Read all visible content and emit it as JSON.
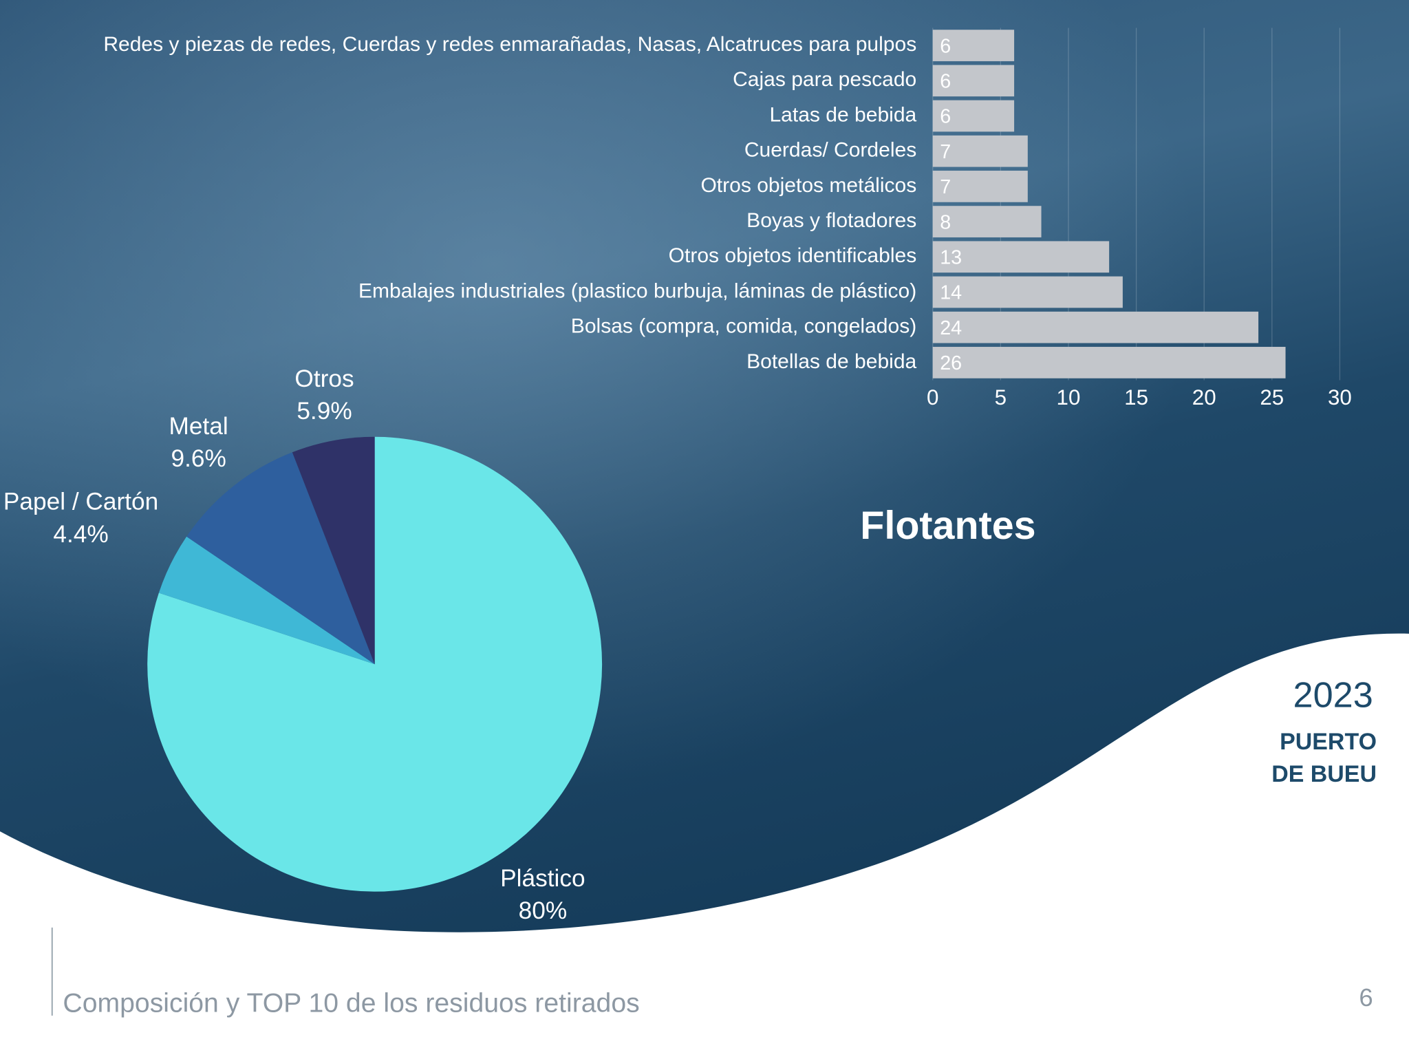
{
  "chart_data": [
    {
      "type": "barh",
      "categories": [
        "Redes y piezas de redes, Cuerdas y redes enmarañadas, Nasas, Alcatruces para pulpos",
        "Cajas para pescado",
        "Latas de bebida",
        "Cuerdas/ Cordeles",
        "Otros objetos metálicos",
        "Boyas y flotadores",
        "Otros objetos identificables",
        "Embalajes industriales (plastico burbuja, láminas de plástico)",
        "Bolsas (compra, comida, congelados)",
        "Botellas de bebida"
      ],
      "values": [
        6,
        6,
        6,
        7,
        7,
        8,
        13,
        14,
        24,
        26
      ],
      "color": "#c3c6cb",
      "xlim": [
        0,
        30
      ],
      "xticks": [
        0,
        5,
        10,
        15,
        20,
        25,
        30
      ],
      "grid": true
    },
    {
      "type": "pie",
      "categories": [
        "Plástico",
        "Papel / Cartón",
        "Metal",
        "Otros"
      ],
      "values": [
        80,
        4.4,
        9.6,
        5.9
      ],
      "value_labels": [
        "80%",
        "4.4%",
        "9.6%",
        "5.9%"
      ],
      "colors": [
        "#6ae6e8",
        "#3fb8d6",
        "#2e5f9e",
        "#2f3268"
      ]
    }
  ],
  "slide": {
    "heading": "Flotantes",
    "year": "2023",
    "place": [
      "PUERTO",
      "DE BUEU"
    ],
    "footer": "Composición y TOP 10 de los residuos retirados",
    "page_number": "6"
  }
}
